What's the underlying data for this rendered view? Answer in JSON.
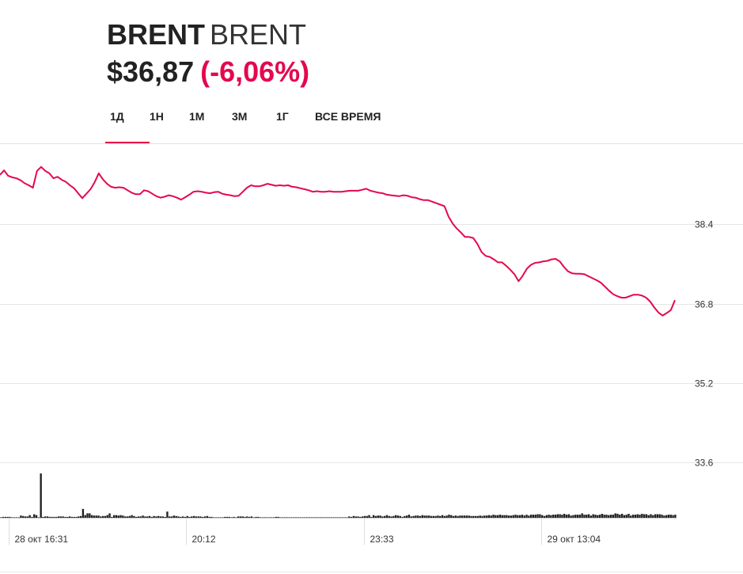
{
  "header": {
    "ticker": "BRENT",
    "name": "BRENT",
    "price": "$36,87",
    "change": "(-6,06%)"
  },
  "tabs": [
    {
      "label": "1Д",
      "active": true
    },
    {
      "label": "1Н",
      "active": false
    },
    {
      "label": "1М",
      "active": false
    },
    {
      "label": "3М",
      "active": false
    },
    {
      "label": "1Г",
      "active": false
    },
    {
      "label": "ВСЕ ВРЕМЯ",
      "active": false
    }
  ],
  "colors": {
    "accent": "#e4084d",
    "line": "#e4084d",
    "volume": "#222222",
    "grid": "#e6e6e6"
  },
  "chart_data": {
    "type": "line",
    "y_ticks": [
      38.4,
      36.8,
      35.2,
      33.6
    ],
    "y_tick_labels": [
      "38.4",
      "36.8",
      "35.2",
      "33.6"
    ],
    "ylim": [
      32.7,
      39.5
    ],
    "x_tick_labels": [
      "28 окт 16:31",
      "20:12",
      "23:33",
      "29 окт 13:04"
    ],
    "x_tick_index": [
      4,
      84,
      164,
      244
    ],
    "grid": true,
    "series": [
      {
        "values": [
          39.39,
          39.48,
          39.37,
          39.34,
          39.32,
          39.28,
          39.22,
          39.18,
          39.13,
          39.47,
          39.55,
          39.47,
          39.42,
          39.32,
          39.35,
          39.29,
          39.25,
          39.18,
          39.12,
          39.02,
          38.92,
          39.01,
          39.1,
          39.24,
          39.42,
          39.3,
          39.21,
          39.15,
          39.13,
          39.14,
          39.13,
          39.08,
          39.03,
          39.0,
          39.0,
          39.08,
          39.06,
          39.01,
          38.96,
          38.93,
          38.95,
          38.98,
          38.96,
          38.93,
          38.89,
          38.94,
          38.99,
          39.05,
          39.06,
          39.05,
          39.03,
          39.02,
          39.04,
          39.05,
          39.01,
          38.99,
          38.98,
          38.96,
          38.97,
          39.05,
          39.13,
          39.18,
          39.16,
          39.16,
          39.18,
          39.21,
          39.19,
          39.17,
          39.18,
          39.17,
          39.18,
          39.15,
          39.14,
          39.12,
          39.1,
          39.08,
          39.05,
          39.06,
          39.05,
          39.05,
          39.06,
          39.05,
          39.05,
          39.05,
          39.06,
          39.07,
          39.07,
          39.07,
          39.09,
          39.11,
          39.07,
          39.05,
          39.03,
          39.02,
          38.99,
          38.98,
          38.97,
          38.96,
          38.98,
          38.97,
          38.94,
          38.93,
          38.9,
          38.88,
          38.88,
          38.85,
          38.82,
          38.79,
          38.76,
          38.55,
          38.41,
          38.31,
          38.23,
          38.14,
          38.14,
          38.12,
          38.0,
          37.84,
          37.76,
          37.74,
          37.69,
          37.63,
          37.63,
          37.56,
          37.48,
          37.39,
          37.25,
          37.36,
          37.5,
          37.58,
          37.62,
          37.63,
          37.65,
          37.66,
          37.69,
          37.7,
          37.65,
          37.54,
          37.45,
          37.41,
          37.4,
          37.4,
          37.39,
          37.35,
          37.31,
          37.27,
          37.22,
          37.14,
          37.06,
          36.99,
          36.95,
          36.92,
          36.92,
          36.95,
          36.98,
          36.98,
          36.96,
          36.92,
          36.84,
          36.72,
          36.62,
          36.56,
          36.61,
          36.67,
          36.87
        ]
      }
    ],
    "volume": [
      0.01,
      0.02,
      0.02,
      0.02,
      0.02,
      0.0,
      0.01,
      0.01,
      0.01,
      0.05,
      0.04,
      0.03,
      0.03,
      0.06,
      0.02,
      0.08,
      0.06,
      0.01,
      1.0,
      0.02,
      0.03,
      0.03,
      0.02,
      0.02,
      0.02,
      0.02,
      0.03,
      0.03,
      0.03,
      0.02,
      0.02,
      0.03,
      0.02,
      0.02,
      0.02,
      0.03,
      0.04,
      0.2,
      0.06,
      0.1,
      0.1,
      0.06,
      0.05,
      0.05,
      0.05,
      0.03,
      0.04,
      0.04,
      0.06,
      0.1,
      0.02,
      0.06,
      0.06,
      0.05,
      0.06,
      0.05,
      0.03,
      0.03,
      0.04,
      0.06,
      0.04,
      0.02,
      0.03,
      0.03,
      0.05,
      0.03,
      0.03,
      0.04,
      0.02,
      0.04,
      0.03,
      0.04,
      0.03,
      0.03,
      0.02,
      0.14,
      0.03,
      0.03,
      0.05,
      0.04,
      0.03,
      0.02,
      0.03,
      0.02,
      0.04,
      0.02,
      0.03,
      0.04,
      0.03,
      0.03,
      0.03,
      0.02,
      0.03,
      0.04,
      0.02,
      0.02,
      0.01,
      0.01,
      0.01,
      0.01,
      0.01,
      0.02,
      0.02,
      0.02,
      0.01,
      0.02,
      0.0,
      0.03,
      0.03,
      0.03,
      0.02,
      0.03,
      0.02,
      0.03,
      0.01,
      0.02,
      0.02,
      0.0,
      0.01,
      0.01,
      0.01,
      0.01,
      0.0,
      0.01,
      0.02,
      0.02,
      0.0,
      0.0,
      0.0,
      0.0,
      0.0,
      0.0,
      0.0,
      0.0,
      0.0,
      0.01,
      0.01,
      0.0,
      0.01,
      0.0,
      0.0,
      0.0,
      0.01,
      0.01,
      0.01,
      0.01,
      0.0,
      0.0,
      0.01,
      0.0,
      0.0,
      0.0,
      0.01,
      0.0,
      0.01,
      0.01,
      0.01,
      0.03,
      0.02,
      0.04,
      0.03,
      0.03,
      0.02,
      0.03,
      0.04,
      0.04,
      0.06,
      0.02,
      0.06,
      0.04,
      0.05,
      0.05,
      0.03,
      0.04,
      0.06,
      0.04,
      0.03,
      0.04,
      0.06,
      0.05,
      0.04,
      0.02,
      0.04,
      0.05,
      0.07,
      0.03,
      0.04,
      0.05,
      0.05,
      0.04,
      0.06,
      0.05,
      0.05,
      0.05,
      0.04,
      0.04,
      0.04,
      0.05,
      0.04,
      0.06,
      0.04,
      0.05,
      0.07,
      0.06,
      0.04,
      0.05,
      0.04,
      0.05,
      0.05,
      0.05,
      0.05,
      0.05,
      0.04,
      0.04,
      0.04,
      0.04,
      0.05,
      0.04,
      0.05,
      0.05,
      0.06,
      0.05,
      0.07,
      0.06,
      0.06,
      0.07,
      0.06,
      0.06,
      0.06,
      0.05,
      0.05,
      0.06,
      0.07,
      0.06,
      0.06,
      0.07,
      0.05,
      0.07,
      0.05,
      0.07,
      0.07,
      0.07,
      0.08,
      0.08,
      0.06,
      0.04,
      0.06,
      0.07,
      0.06,
      0.07,
      0.07,
      0.08,
      0.08,
      0.07,
      0.09,
      0.07,
      0.08,
      0.05,
      0.06,
      0.07,
      0.07,
      0.07,
      0.1,
      0.07,
      0.07,
      0.08,
      0.05,
      0.08,
      0.07,
      0.06,
      0.07,
      0.09,
      0.07,
      0.07,
      0.06,
      0.07,
      0.07,
      0.1,
      0.09,
      0.07,
      0.09,
      0.06,
      0.07,
      0.09,
      0.05,
      0.07,
      0.07,
      0.08,
      0.07,
      0.09,
      0.08,
      0.08,
      0.06,
      0.08,
      0.06,
      0.08,
      0.08,
      0.08,
      0.07,
      0.05,
      0.06,
      0.07,
      0.07,
      0.06,
      0.07
    ]
  }
}
